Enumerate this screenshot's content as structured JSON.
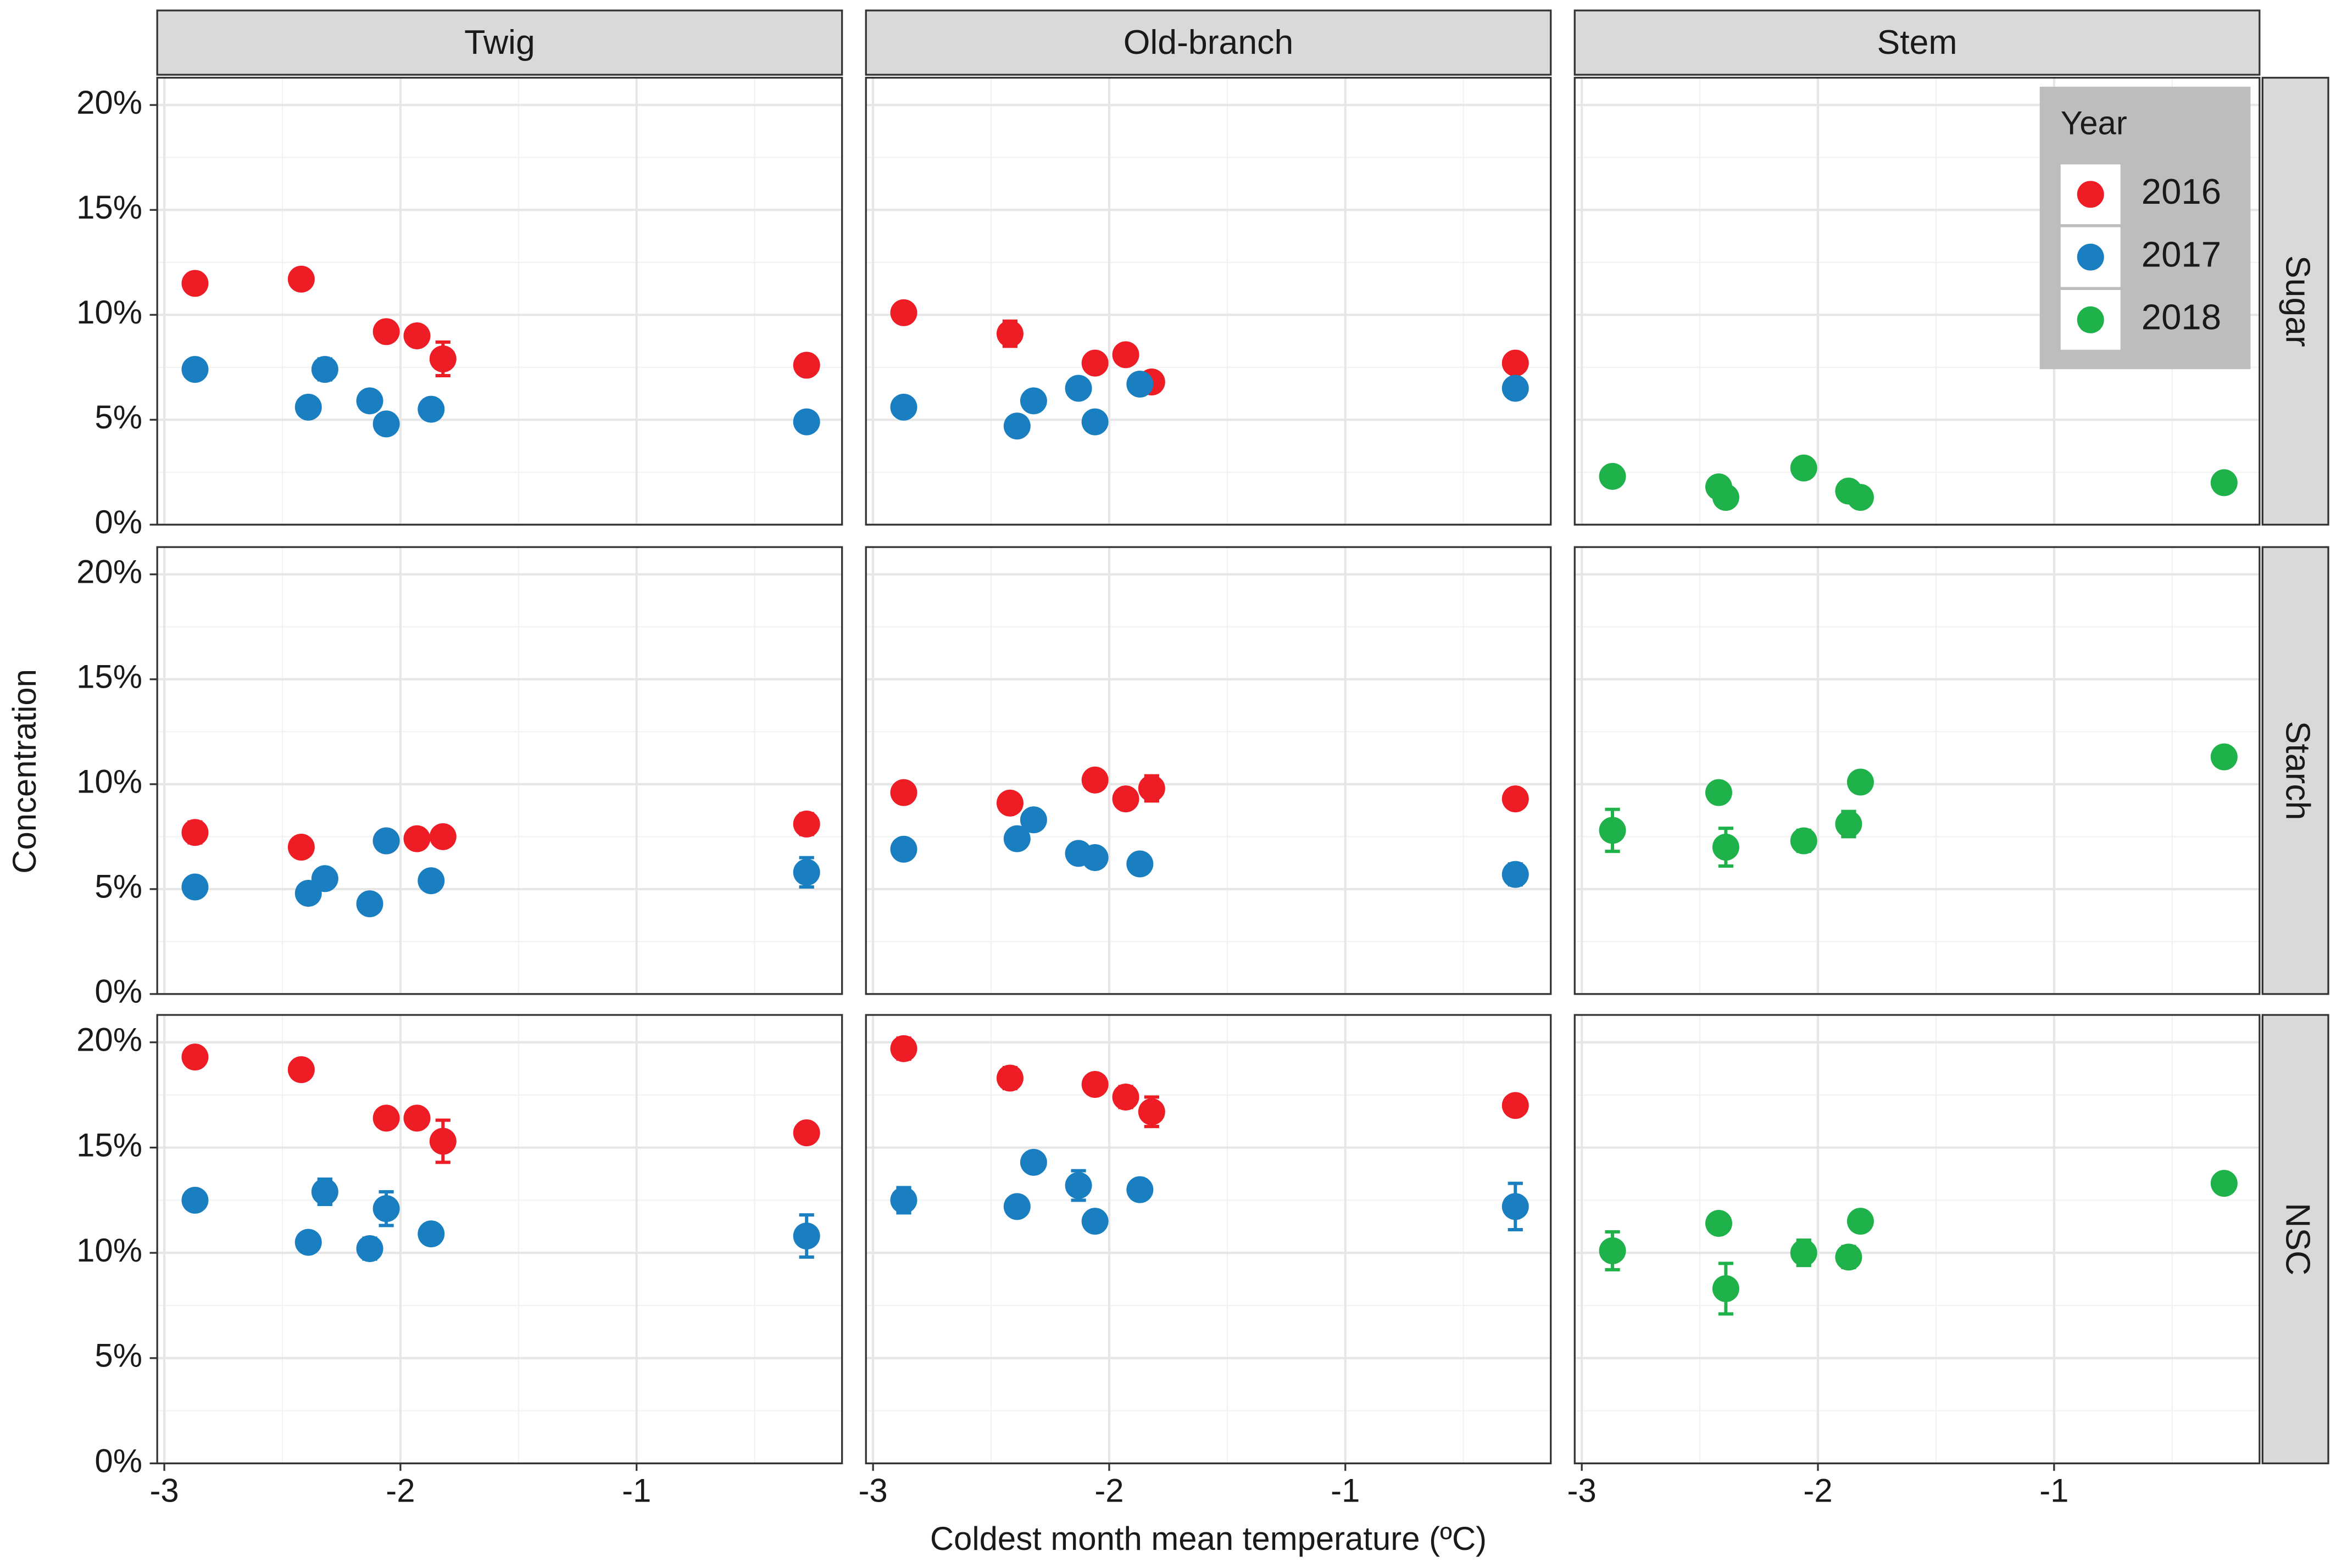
{
  "chart_data": {
    "type": "scatter",
    "x_label": "Coldest month mean temperature (ºC)",
    "y_label": "Concentration",
    "columns": [
      "Twig",
      "Old-branch",
      "Stem"
    ],
    "rows": [
      "Sugar",
      "Starch",
      "NSC"
    ],
    "legend": {
      "title": "Year",
      "position": "top-right"
    },
    "series": [
      {
        "name": "2016",
        "color": "#ee1c24"
      },
      {
        "name": "2017",
        "color": "#1a7fc1"
      },
      {
        "name": "2018",
        "color": "#1fb14a"
      }
    ],
    "xlim": [
      -3.03,
      -0.13
    ],
    "xticks": [
      -3,
      -2,
      -1
    ],
    "ylim": [
      0,
      21.3
    ],
    "yticks": [
      {
        "value": 0,
        "label": "0%"
      },
      {
        "value": 5,
        "label": "5%"
      },
      {
        "value": 10,
        "label": "10%"
      },
      {
        "value": 15,
        "label": "15%"
      },
      {
        "value": 20,
        "label": "20%"
      }
    ],
    "grid": true,
    "panels": [
      [
        [
          {
            "x": [
              -2.87,
              -2.42,
              -2.06,
              -1.93,
              -1.82,
              -0.28
            ],
            "values": [
              11.5,
              11.7,
              9.2,
              9.0,
              7.9,
              7.6
            ],
            "errors": [
              null,
              null,
              null,
              null,
              0.8,
              null
            ]
          },
          {
            "x": [
              -2.87,
              -2.39,
              -2.32,
              -2.13,
              -2.06,
              -1.87,
              -0.28
            ],
            "values": [
              7.4,
              5.6,
              7.4,
              5.9,
              4.8,
              5.5,
              4.9
            ],
            "errors": [
              null,
              null,
              0.5,
              null,
              null,
              null,
              null
            ]
          },
          {
            "x": [],
            "values": [],
            "errors": []
          }
        ],
        [
          {
            "x": [
              -2.87,
              -2.42,
              -2.06,
              -1.93,
              -1.82,
              -0.28
            ],
            "values": [
              10.1,
              9.1,
              7.7,
              8.1,
              6.8,
              7.7
            ],
            "errors": [
              null,
              0.6,
              null,
              null,
              null,
              null
            ]
          },
          {
            "x": [
              -2.87,
              -2.39,
              -2.32,
              -2.13,
              -2.06,
              -1.87,
              -0.28
            ],
            "values": [
              5.6,
              4.7,
              5.9,
              6.5,
              4.9,
              6.7,
              6.5
            ],
            "errors": [
              null,
              null,
              null,
              null,
              null,
              null,
              null
            ]
          },
          {
            "x": [],
            "values": [],
            "errors": []
          }
        ],
        [
          {
            "x": [],
            "values": [],
            "errors": []
          },
          {
            "x": [],
            "values": [],
            "errors": []
          },
          {
            "x": [
              -2.87,
              -2.42,
              -2.39,
              -2.06,
              -1.87,
              -1.82,
              -0.28
            ],
            "values": [
              2.3,
              1.8,
              1.3,
              2.7,
              1.6,
              1.3,
              2.0
            ],
            "errors": [
              null,
              null,
              null,
              null,
              null,
              null,
              null
            ]
          }
        ]
      ],
      [
        [
          {
            "x": [
              -2.87,
              -2.42,
              -2.06,
              -1.93,
              -1.82,
              -0.28
            ],
            "values": [
              7.7,
              7.0,
              7.3,
              7.4,
              7.5,
              8.1
            ],
            "errors": [
              0.5,
              null,
              null,
              null,
              null,
              0.5
            ]
          },
          {
            "x": [
              -2.87,
              -2.39,
              -2.32,
              -2.13,
              -2.06,
              -1.87,
              -0.28
            ],
            "values": [
              5.1,
              4.8,
              5.5,
              4.3,
              7.3,
              5.4,
              5.8
            ],
            "errors": [
              null,
              null,
              null,
              null,
              null,
              null,
              0.7
            ]
          },
          {
            "x": [],
            "values": [],
            "errors": []
          }
        ],
        [
          {
            "x": [
              -2.87,
              -2.42,
              -2.06,
              -1.93,
              -1.82,
              -0.28
            ],
            "values": [
              9.6,
              9.1,
              10.2,
              9.3,
              9.8,
              9.3
            ],
            "errors": [
              null,
              0.4,
              null,
              null,
              0.6,
              null
            ]
          },
          {
            "x": [
              -2.87,
              -2.39,
              -2.32,
              -2.13,
              -2.06,
              -1.87,
              -0.28
            ],
            "values": [
              6.9,
              7.4,
              8.3,
              6.7,
              6.5,
              6.2,
              5.7
            ],
            "errors": [
              null,
              null,
              null,
              null,
              null,
              null,
              0.5
            ]
          },
          {
            "x": [],
            "values": [],
            "errors": []
          }
        ],
        [
          {
            "x": [],
            "values": [],
            "errors": []
          },
          {
            "x": [],
            "values": [],
            "errors": []
          },
          {
            "x": [
              -2.87,
              -2.42,
              -2.39,
              -2.06,
              -1.87,
              -1.82,
              -0.28
            ],
            "values": [
              7.8,
              9.6,
              7.0,
              7.3,
              8.1,
              10.1,
              11.3
            ],
            "errors": [
              1.0,
              null,
              0.9,
              0.5,
              0.6,
              null,
              null
            ]
          }
        ]
      ],
      [
        [
          {
            "x": [
              -2.87,
              -2.42,
              -2.06,
              -1.93,
              -1.82,
              -0.28
            ],
            "values": [
              19.3,
              18.7,
              16.4,
              16.4,
              15.3,
              15.7
            ],
            "errors": [
              null,
              null,
              null,
              null,
              1.0,
              null
            ]
          },
          {
            "x": [
              -2.87,
              -2.39,
              -2.32,
              -2.13,
              -2.06,
              -1.87,
              -0.28
            ],
            "values": [
              12.5,
              10.5,
              12.9,
              10.2,
              12.1,
              10.9,
              10.8
            ],
            "errors": [
              null,
              null,
              0.6,
              0.5,
              0.8,
              null,
              1.0
            ]
          },
          {
            "x": [],
            "values": [],
            "errors": []
          }
        ],
        [
          {
            "x": [
              -2.87,
              -2.42,
              -2.06,
              -1.93,
              -1.82,
              -0.28
            ],
            "values": [
              19.7,
              18.3,
              18.0,
              17.4,
              16.7,
              17.0
            ],
            "errors": [
              0.5,
              0.5,
              null,
              0.5,
              0.7,
              null
            ]
          },
          {
            "x": [
              -2.87,
              -2.39,
              -2.32,
              -2.13,
              -2.06,
              -1.87,
              -0.28
            ],
            "values": [
              12.5,
              12.2,
              14.3,
              13.2,
              11.5,
              13.0,
              12.2
            ],
            "errors": [
              0.6,
              null,
              null,
              0.7,
              null,
              0.4,
              1.1
            ]
          },
          {
            "x": [],
            "values": [],
            "errors": []
          }
        ],
        [
          {
            "x": [],
            "values": [],
            "errors": []
          },
          {
            "x": [],
            "values": [],
            "errors": []
          },
          {
            "x": [
              -2.87,
              -2.42,
              -2.39,
              -2.06,
              -1.87,
              -1.82,
              -0.28
            ],
            "values": [
              10.1,
              11.4,
              8.3,
              10.0,
              9.8,
              11.5,
              13.3
            ],
            "errors": [
              0.9,
              null,
              1.2,
              0.6,
              0.5,
              null,
              null
            ]
          }
        ]
      ]
    ]
  }
}
